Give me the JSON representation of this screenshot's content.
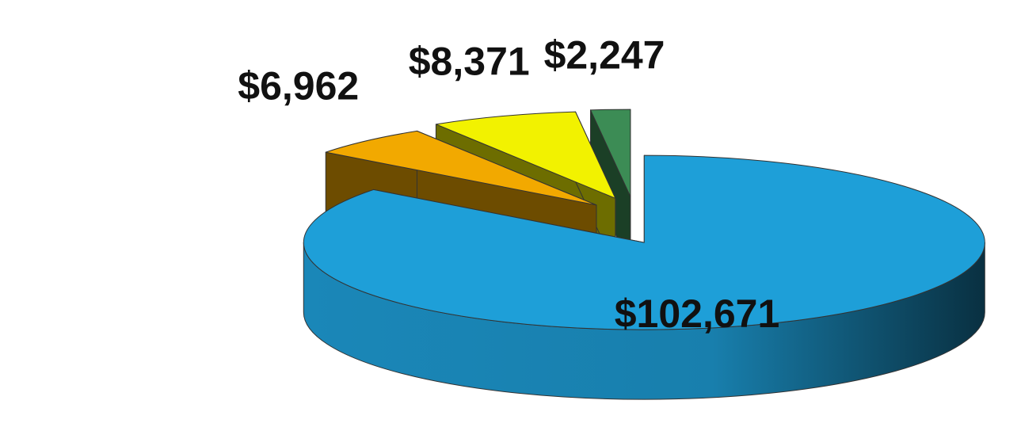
{
  "chart_data": {
    "type": "pie",
    "three_d": true,
    "exploded": true,
    "values": [
      102671,
      6962,
      8371,
      2247
    ],
    "value_labels": [
      "$102,671",
      "$6,962",
      "$8,371",
      "$2,247"
    ],
    "colors": [
      "#1e9fd8",
      "#f2a900",
      "#f2f200",
      "#3c8c55"
    ]
  }
}
